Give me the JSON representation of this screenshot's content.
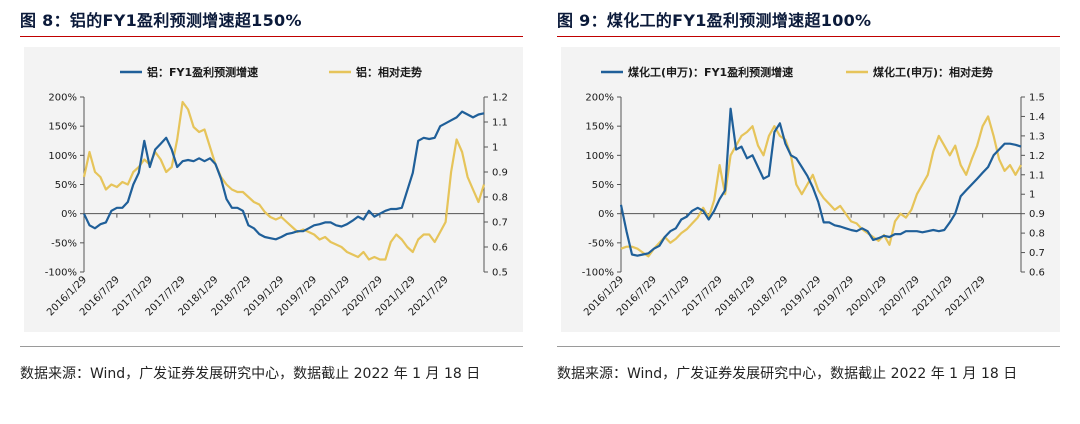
{
  "charts": [
    {
      "figure_label": "图 8：",
      "title": "铝的FY1盈利预测增速超150%",
      "source": "数据来源：Wind，广发证券发展研究中心，数据截止 2022 年 1 月 18 日"
    },
    {
      "figure_label": "图 9：",
      "title": "煤化工的FY1盈利预测增速超100%",
      "source": "数据来源：Wind，广发证券发展研究中心，数据截止 2022 年 1 月 18 日"
    }
  ],
  "colors": {
    "primary": "#1f5f99",
    "secondary": "#e6c45a",
    "title_rule": "#c00000"
  },
  "chart_data": [
    {
      "type": "line",
      "title": "铝的FY1盈利预测增速超150%",
      "x_start": "2016/1/29",
      "x_tick_labels": [
        "2016/1/29",
        "2016/7/29",
        "2017/1/29",
        "2017/7/29",
        "2018/1/29",
        "2018/7/29",
        "2019/1/29",
        "2019/7/29",
        "2020/1/29",
        "2020/7/29",
        "2021/1/29",
        "2021/7/29"
      ],
      "n_points": 74,
      "left_axis": {
        "ylim": [
          -100,
          200
        ],
        "ticks": [
          -100,
          -50,
          0,
          50,
          100,
          150,
          200
        ],
        "tick_labels": [
          "-100%",
          "-50%",
          "0%",
          "50%",
          "100%",
          "150%",
          "200%"
        ]
      },
      "right_axis": {
        "ylim": [
          0.5,
          1.2
        ],
        "ticks": [
          0.5,
          0.6,
          0.7,
          0.8,
          0.9,
          1.0,
          1.1,
          1.2
        ],
        "tick_labels": [
          "0.5",
          "0.6",
          "0.7",
          "0.8",
          "0.9",
          "1",
          "1.1",
          "1.2"
        ]
      },
      "legend_position": "top",
      "series": [
        {
          "name": "铝：FY1盈利预测增速",
          "axis": "left",
          "values": [
            0,
            -20,
            -25,
            -18,
            -15,
            5,
            10,
            10,
            20,
            50,
            70,
            125,
            80,
            110,
            120,
            130,
            110,
            80,
            90,
            92,
            90,
            95,
            90,
            95,
            85,
            60,
            25,
            10,
            10,
            5,
            -20,
            -25,
            -35,
            -40,
            -42,
            -44,
            -40,
            -35,
            -33,
            -30,
            -30,
            -25,
            -20,
            -18,
            -15,
            -15,
            -20,
            -22,
            -18,
            -12,
            -5,
            -10,
            5,
            -5,
            0,
            5,
            8,
            8,
            10,
            40,
            70,
            125,
            130,
            128,
            130,
            150,
            155,
            160,
            165,
            175,
            170,
            165,
            170,
            172
          ]
        },
        {
          "name": "铝：相对走势",
          "axis": "right",
          "values": [
            0.88,
            0.98,
            0.9,
            0.88,
            0.83,
            0.85,
            0.84,
            0.86,
            0.85,
            0.9,
            0.92,
            0.95,
            0.93,
            0.98,
            0.95,
            0.9,
            0.92,
            1.03,
            1.18,
            1.15,
            1.08,
            1.06,
            1.07,
            1.0,
            0.93,
            0.88,
            0.85,
            0.83,
            0.82,
            0.82,
            0.8,
            0.78,
            0.77,
            0.74,
            0.72,
            0.71,
            0.72,
            0.7,
            0.68,
            0.66,
            0.67,
            0.66,
            0.65,
            0.63,
            0.64,
            0.62,
            0.61,
            0.6,
            0.58,
            0.57,
            0.56,
            0.58,
            0.55,
            0.56,
            0.55,
            0.55,
            0.62,
            0.65,
            0.63,
            0.6,
            0.58,
            0.63,
            0.65,
            0.65,
            0.62,
            0.66,
            0.7,
            0.9,
            1.03,
            0.98,
            0.88,
            0.83,
            0.78,
            0.85
          ]
        }
      ]
    },
    {
      "type": "line",
      "title": "煤化工的FY1盈利预测增速超100%",
      "x_start": "2016/1/29",
      "x_tick_labels": [
        "2016/1/29",
        "2016/7/29",
        "2017/1/29",
        "2017/7/29",
        "2018/1/29",
        "2018/7/29",
        "2019/1/29",
        "2019/7/29",
        "2020/1/29",
        "2020/7/29",
        "2021/1/29",
        "2021/7/29"
      ],
      "n_points": 74,
      "left_axis": {
        "ylim": [
          -100,
          200
        ],
        "ticks": [
          -100,
          -50,
          0,
          50,
          100,
          150,
          200
        ],
        "tick_labels": [
          "-100%",
          "-50%",
          "0%",
          "50%",
          "100%",
          "150%",
          "200%"
        ]
      },
      "right_axis": {
        "ylim": [
          0.6,
          1.5
        ],
        "ticks": [
          0.6,
          0.7,
          0.8,
          0.9,
          1.0,
          1.1,
          1.2,
          1.3,
          1.4,
          1.5
        ],
        "tick_labels": [
          "0.6",
          "0.7",
          "0.8",
          "0.9",
          "1",
          "1.1",
          "1.2",
          "1.3",
          "1.4",
          "1.5"
        ]
      },
      "legend_position": "top",
      "series": [
        {
          "name": "煤化工(申万)：FY1盈利预测增速",
          "axis": "left",
          "values": [
            15,
            -30,
            -70,
            -72,
            -70,
            -68,
            -60,
            -55,
            -40,
            -30,
            -25,
            -10,
            -5,
            5,
            10,
            5,
            -10,
            5,
            25,
            40,
            180,
            110,
            115,
            95,
            100,
            80,
            60,
            65,
            140,
            155,
            120,
            100,
            95,
            80,
            65,
            45,
            20,
            -15,
            -15,
            -20,
            -22,
            -25,
            -28,
            -30,
            -25,
            -30,
            -45,
            -42,
            -38,
            -40,
            -35,
            -35,
            -30,
            -30,
            -30,
            -32,
            -30,
            -28,
            -30,
            -28,
            -15,
            0,
            30,
            40,
            50,
            60,
            70,
            80,
            100,
            110,
            120,
            120,
            118,
            115
          ]
        },
        {
          "name": "煤化工(申万)：相对走势",
          "axis": "right",
          "values": [
            0.72,
            0.73,
            0.73,
            0.72,
            0.7,
            0.68,
            0.72,
            0.75,
            0.78,
            0.75,
            0.77,
            0.8,
            0.82,
            0.85,
            0.88,
            0.93,
            0.88,
            0.97,
            1.15,
            1.0,
            1.2,
            1.25,
            1.3,
            1.32,
            1.35,
            1.25,
            1.2,
            1.3,
            1.35,
            1.3,
            1.28,
            1.2,
            1.05,
            1.0,
            1.05,
            1.1,
            1.02,
            0.98,
            0.95,
            0.92,
            0.94,
            0.9,
            0.86,
            0.85,
            0.82,
            0.8,
            0.78,
            0.76,
            0.79,
            0.74,
            0.86,
            0.9,
            0.88,
            0.92,
            1.0,
            1.05,
            1.1,
            1.22,
            1.3,
            1.25,
            1.2,
            1.25,
            1.15,
            1.1,
            1.18,
            1.25,
            1.35,
            1.4,
            1.3,
            1.18,
            1.12,
            1.15,
            1.1,
            1.15
          ]
        }
      ]
    }
  ]
}
